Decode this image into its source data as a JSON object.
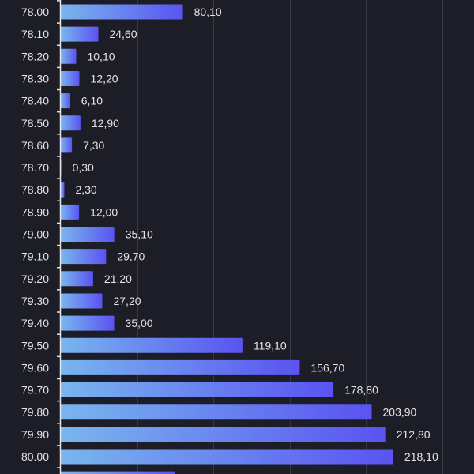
{
  "chart_data": {
    "type": "bar",
    "orientation": "horizontal",
    "title": "",
    "xlabel": "",
    "ylabel": "",
    "xlim": [
      0,
      270
    ],
    "grid": true,
    "gridlines_at": [
      50,
      100,
      150,
      200,
      250
    ],
    "categories": [
      "78.00",
      "78.10",
      "78.20",
      "78.30",
      "78.40",
      "78.50",
      "78.60",
      "78.70",
      "78.80",
      "78.90",
      "79.00",
      "79.10",
      "79.20",
      "79.30",
      "79.40",
      "79.50",
      "79.60",
      "79.70",
      "79.80",
      "79.90",
      "80.00"
    ],
    "values": [
      80.1,
      24.6,
      10.1,
      12.2,
      6.1,
      12.9,
      7.3,
      0.3,
      2.3,
      12.0,
      35.1,
      29.7,
      21.2,
      27.2,
      35.0,
      119.1,
      156.7,
      178.8,
      203.9,
      212.8,
      218.1
    ],
    "value_labels": [
      "80,10",
      "24,60",
      "10,10",
      "12,20",
      "6,10",
      "12,90",
      "7,30",
      "0,30",
      "2,30",
      "12,00",
      "35,10",
      "29,70",
      "21,20",
      "27,20",
      "35,00",
      "119,10",
      "156,70",
      "178,80",
      "203,90",
      "212,80",
      "218,10"
    ],
    "partial_next_bar_value": 75,
    "colors": {
      "background": "#1c1d27",
      "bar_start": "#79b6ee",
      "bar_end": "#5a53f1",
      "grid": "#363844",
      "axis": "#e4e4e8",
      "text": "#e4e4e8"
    }
  }
}
